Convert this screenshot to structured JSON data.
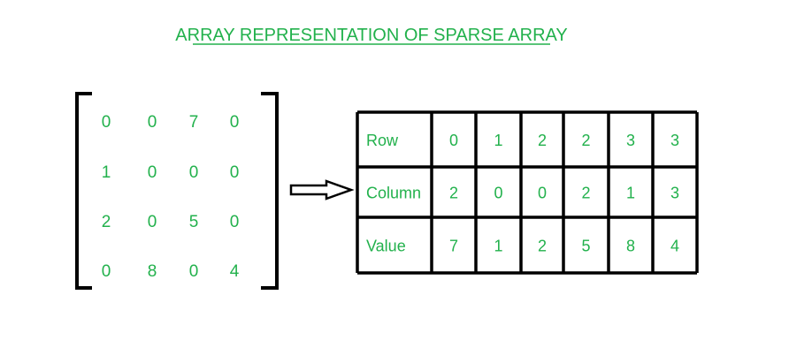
{
  "title": "ARRAY REPRESENTATION OF SPARSE ARRAY",
  "colors": {
    "text": "#22b14c",
    "lines": "#000000",
    "background": "#ffffff"
  },
  "sparse_matrix": [
    [
      "0",
      "0",
      "7",
      "0"
    ],
    [
      "1",
      "0",
      "0",
      "0"
    ],
    [
      "2",
      "0",
      "5",
      "0"
    ],
    [
      "0",
      "8",
      "0",
      "4"
    ]
  ],
  "arrow_icon": "right-arrow",
  "representation_table": {
    "rows": [
      {
        "label": "Row",
        "values": [
          "0",
          "1",
          "2",
          "2",
          "3",
          "3"
        ]
      },
      {
        "label": "Column",
        "values": [
          "2",
          "0",
          "0",
          "2",
          "1",
          "3"
        ]
      },
      {
        "label": "Value",
        "values": [
          "7",
          "1",
          "2",
          "5",
          "8",
          "4"
        ]
      }
    ]
  }
}
